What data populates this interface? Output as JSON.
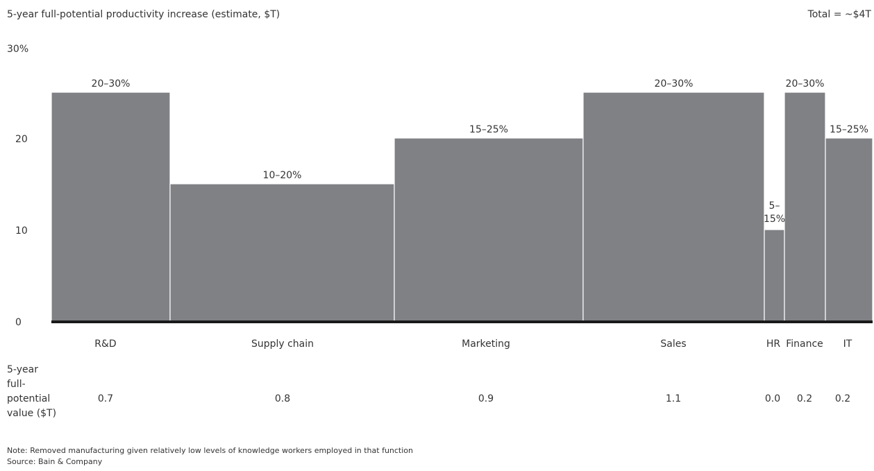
{
  "header": {
    "title": "5-year full-potential productivity increase (estimate, $T)",
    "total": "Total = ~$4T"
  },
  "chart_data": {
    "type": "bar",
    "variable_width": true,
    "ylim": [
      0,
      30
    ],
    "y_ticks": [
      {
        "value": 0,
        "label": "0"
      },
      {
        "value": 10,
        "label": "10"
      },
      {
        "value": 20,
        "label": "20"
      },
      {
        "value": 30,
        "label": "30%"
      }
    ],
    "bar_color": "#808185",
    "baseline_color": "#1a1a1a",
    "categories": [
      "R&D",
      "Supply chain",
      "Marketing",
      "Sales",
      "HR",
      "Finance",
      "IT"
    ],
    "range_labels": [
      "20–30%",
      "10–20%",
      "15–25%",
      "20–30%",
      "5–\n15%",
      "20–30%",
      "15–25%"
    ],
    "values": [
      25,
      15,
      20,
      25,
      10,
      25,
      20
    ],
    "value_row_label": [
      "5-year",
      "full-",
      "potential",
      "value ($T)"
    ],
    "value_row": [
      "0.7",
      "0.8",
      "0.9",
      "1.1",
      "0.0",
      "0.2",
      "0.2"
    ]
  },
  "footer": {
    "note": "Note: Removed manufacturing given relatively low levels of knowledge workers employed in that function",
    "source": "Source: Bain & Company"
  }
}
